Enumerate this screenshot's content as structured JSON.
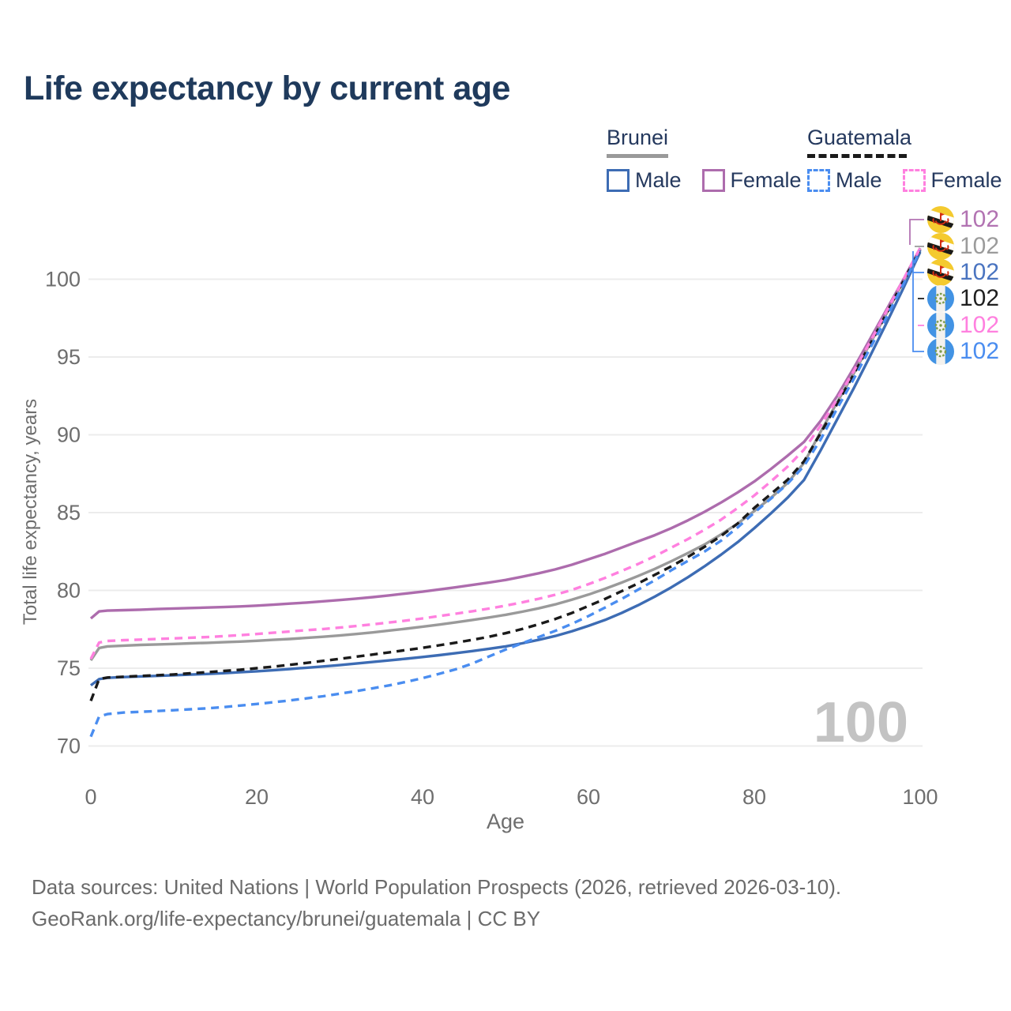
{
  "title": "Life expectancy by current age",
  "legend": {
    "brunei": {
      "name": "Brunei",
      "male_label": "Male",
      "female_label": "Female"
    },
    "guatemala": {
      "name": "Guatemala",
      "male_label": "Male",
      "female_label": "Female"
    }
  },
  "right_labels": [
    {
      "flag": "brunei-flag",
      "value": "102",
      "color": "#b273b2"
    },
    {
      "flag": "brunei-flag",
      "value": "102",
      "color": "#9b9b9b"
    },
    {
      "flag": "brunei-flag",
      "value": "102",
      "color": "#4a74c0"
    },
    {
      "flag": "guatemala-flag",
      "value": "102",
      "color": "#1f1f1f"
    },
    {
      "flag": "guatemala-flag",
      "value": "102",
      "color": "#ff80df"
    },
    {
      "flag": "guatemala-flag",
      "value": "102",
      "color": "#4a8df0"
    }
  ],
  "watermark": "100",
  "footer": {
    "line1": "Data sources: United Nations | World Population Prospects (2026, retrieved 2026-03-10).",
    "line2": "GeoRank.org/life-expectancy/brunei/guatemala | CC BY"
  },
  "colors": {
    "title_navy": "#1f3a5c",
    "tick_gray": "#6e6e6e",
    "gridline": "#ececec",
    "watermark_gray": "#c3c3c3"
  },
  "chart_data": {
    "type": "line",
    "title": "Life expectancy by current age",
    "xlabel": "Age",
    "ylabel": "Total life expectancy, years",
    "xticks": [
      0,
      20,
      40,
      60,
      80,
      100
    ],
    "yticks": [
      70,
      75,
      80,
      85,
      90,
      95,
      100
    ],
    "xlim": [
      0,
      100
    ],
    "ylim": [
      70,
      102
    ],
    "grid": "horizontal",
    "legend_position": "top-right",
    "ages": [
      0,
      1,
      2,
      4,
      6,
      8,
      10,
      12,
      14,
      16,
      18,
      20,
      22,
      24,
      26,
      28,
      30,
      32,
      34,
      36,
      38,
      40,
      42,
      44,
      46,
      48,
      50,
      52,
      54,
      56,
      58,
      60,
      62,
      64,
      66,
      68,
      70,
      72,
      74,
      76,
      78,
      80,
      82,
      84,
      86,
      88,
      90,
      92,
      94,
      96,
      98,
      100
    ],
    "series": [
      {
        "name": "Brunei Female",
        "country": "Brunei",
        "sex": "Female",
        "color": "#ad6cad",
        "dashed": false,
        "end_label": "102",
        "values": [
          78.2,
          78.65,
          78.7,
          78.73,
          78.76,
          78.8,
          78.84,
          78.87,
          78.9,
          78.93,
          78.97,
          79.02,
          79.08,
          79.15,
          79.22,
          79.3,
          79.38,
          79.47,
          79.57,
          79.68,
          79.8,
          79.92,
          80.06,
          80.2,
          80.35,
          80.5,
          80.67,
          80.88,
          81.1,
          81.35,
          81.65,
          82.0,
          82.35,
          82.75,
          83.15,
          83.55,
          84.0,
          84.5,
          85.05,
          85.65,
          86.3,
          87.0,
          87.8,
          88.65,
          89.55,
          90.9,
          92.5,
          94.3,
          96.2,
          98.1,
          100.0,
          102.0
        ]
      },
      {
        "name": "Brunei Both sexes",
        "country": "Brunei",
        "sex": "Both",
        "color": "#9a9a9a",
        "dashed": false,
        "end_label": "102",
        "values": [
          75.5,
          76.3,
          76.4,
          76.45,
          76.5,
          76.53,
          76.56,
          76.6,
          76.63,
          76.67,
          76.71,
          76.76,
          76.82,
          76.88,
          76.95,
          77.02,
          77.1,
          77.2,
          77.3,
          77.42,
          77.54,
          77.67,
          77.8,
          77.95,
          78.1,
          78.26,
          78.43,
          78.63,
          78.85,
          79.1,
          79.4,
          79.73,
          80.1,
          80.5,
          80.93,
          81.38,
          81.88,
          82.4,
          82.95,
          83.6,
          84.3,
          85.1,
          85.95,
          86.9,
          88.2,
          90.2,
          92.1,
          93.95,
          95.9,
          97.85,
          99.9,
          101.95
        ]
      },
      {
        "name": "Brunei Male",
        "country": "Brunei",
        "sex": "Male",
        "color": "#3d6cb4",
        "dashed": false,
        "end_label": "102",
        "values": [
          73.9,
          74.3,
          74.38,
          74.43,
          74.47,
          74.51,
          74.55,
          74.59,
          74.63,
          74.68,
          74.74,
          74.8,
          74.87,
          74.95,
          75.03,
          75.11,
          75.2,
          75.3,
          75.4,
          75.5,
          75.61,
          75.72,
          75.84,
          75.97,
          76.1,
          76.25,
          76.4,
          76.6,
          76.82,
          77.07,
          77.37,
          77.72,
          78.1,
          78.55,
          79.05,
          79.6,
          80.2,
          80.85,
          81.55,
          82.3,
          83.1,
          84.0,
          84.95,
          85.95,
          87.1,
          89.0,
          91.0,
          93.0,
          95.1,
          97.25,
          99.45,
          101.75
        ]
      },
      {
        "name": "Guatemala Both sexes",
        "country": "Guatemala",
        "sex": "Both",
        "color": "#1a1a1a",
        "dashed": true,
        "end_label": "102",
        "values": [
          72.9,
          74.3,
          74.4,
          74.45,
          74.5,
          74.55,
          74.6,
          74.67,
          74.74,
          74.82,
          74.9,
          75.0,
          75.1,
          75.22,
          75.34,
          75.47,
          75.6,
          75.74,
          75.88,
          76.02,
          76.16,
          76.31,
          76.47,
          76.64,
          76.82,
          77.02,
          77.25,
          77.52,
          77.82,
          78.16,
          78.55,
          79.0,
          79.45,
          79.95,
          80.45,
          81.0,
          81.55,
          82.15,
          82.8,
          83.5,
          84.3,
          85.3,
          86.2,
          87.1,
          88.3,
          90.1,
          92.0,
          93.9,
          95.85,
          97.85,
          99.9,
          101.9
        ]
      },
      {
        "name": "Guatemala Female",
        "country": "Guatemala",
        "sex": "Female",
        "color": "#ff80df",
        "dashed": true,
        "end_label": "102",
        "values": [
          75.6,
          76.65,
          76.75,
          76.8,
          76.84,
          76.88,
          76.92,
          76.96,
          77.0,
          77.06,
          77.12,
          77.2,
          77.28,
          77.36,
          77.44,
          77.52,
          77.61,
          77.71,
          77.82,
          77.94,
          78.06,
          78.2,
          78.35,
          78.5,
          78.66,
          78.83,
          79.02,
          79.23,
          79.46,
          79.72,
          80.03,
          80.4,
          80.8,
          81.25,
          81.7,
          82.2,
          82.75,
          83.3,
          83.9,
          84.55,
          85.3,
          86.1,
          87.0,
          87.95,
          89.05,
          90.6,
          92.3,
          94.1,
          96.0,
          98.0,
          100.0,
          102.0
        ]
      },
      {
        "name": "Guatemala Male",
        "country": "Guatemala",
        "sex": "Male",
        "color": "#4a8df0",
        "dashed": true,
        "end_label": "102",
        "values": [
          70.6,
          71.9,
          72.05,
          72.15,
          72.2,
          72.25,
          72.3,
          72.36,
          72.42,
          72.5,
          72.6,
          72.7,
          72.81,
          72.93,
          73.06,
          73.2,
          73.36,
          73.53,
          73.71,
          73.9,
          74.12,
          74.36,
          74.64,
          74.93,
          75.3,
          75.75,
          76.2,
          76.6,
          77.0,
          77.4,
          77.85,
          78.35,
          78.9,
          79.45,
          80.05,
          80.65,
          81.3,
          81.9,
          82.5,
          83.2,
          84.05,
          85.0,
          85.9,
          86.85,
          88.0,
          89.7,
          91.7,
          93.6,
          95.6,
          97.6,
          99.7,
          101.85
        ]
      }
    ]
  }
}
